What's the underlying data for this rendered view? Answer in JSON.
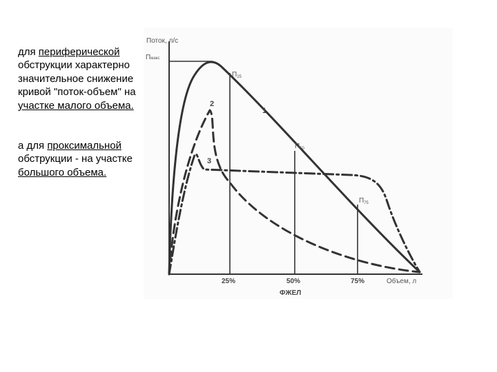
{
  "text": {
    "p1": {
      "t1": "для ",
      "u1": "периферической",
      "t2": " обструкции характерно значительное снижение кривой \"поток-объем\" на ",
      "u2": "участке малого объема."
    },
    "p2": {
      "t1": "а для ",
      "u1": "проксимальной",
      "t2": " обструкции - на участке ",
      "u2": "большого объема."
    }
  },
  "diagram": {
    "y_axis_label": "Поток, л/с",
    "x_axis_label": "Объем, л",
    "x_caption": "ФЖЕЛ",
    "x_ticks": [
      "25%",
      "50%",
      "75%"
    ],
    "pmax": {
      "main": "П",
      "sub": "макс"
    },
    "p25": {
      "main": "П",
      "sub": "25"
    },
    "p50": {
      "main": "П",
      "sub": "50"
    },
    "p75": {
      "main": "П",
      "sub": "75"
    },
    "curve_labels": [
      "1",
      "2",
      "3"
    ]
  }
}
